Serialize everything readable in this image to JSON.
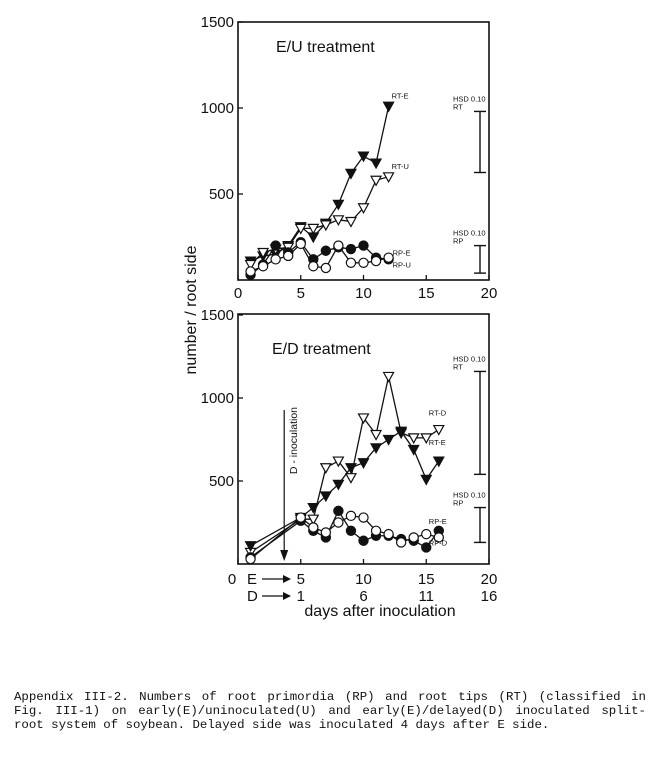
{
  "chart_data": [
    {
      "type": "line",
      "title": "E/U treatment",
      "xlabel": "",
      "ylabel": "number / root side",
      "xlim": [
        0,
        20
      ],
      "ylim": [
        0,
        1500
      ],
      "xticks": [
        "0",
        "5",
        "10",
        "15",
        "20"
      ],
      "yticks": [
        "500",
        "1000",
        "1500"
      ],
      "series": [
        {
          "name": "RT-E",
          "marker": "triangle-down-filled",
          "x": [
            1,
            2,
            3,
            4,
            5,
            6,
            7,
            8,
            9,
            10,
            11,
            12
          ],
          "y": [
            110,
            140,
            150,
            200,
            310,
            250,
            330,
            440,
            620,
            720,
            680,
            1010
          ]
        },
        {
          "name": "RT-U",
          "marker": "triangle-down-open",
          "x": [
            1,
            2,
            3,
            4,
            5,
            6,
            7,
            8,
            9,
            10,
            11,
            12
          ],
          "y": [
            90,
            160,
            180,
            190,
            300,
            300,
            320,
            350,
            340,
            420,
            580,
            600
          ]
        },
        {
          "name": "RP-E",
          "marker": "circle-filled",
          "x": [
            1,
            2,
            3,
            4,
            5,
            6,
            7,
            8,
            9,
            10,
            11,
            12
          ],
          "y": [
            30,
            90,
            200,
            160,
            220,
            120,
            170,
            190,
            180,
            200,
            130,
            120
          ]
        },
        {
          "name": "RP-U",
          "marker": "circle-open",
          "x": [
            1,
            2,
            3,
            4,
            5,
            6,
            7,
            8,
            9,
            10,
            11,
            12
          ],
          "y": [
            50,
            80,
            120,
            140,
            210,
            80,
            70,
            200,
            100,
            100,
            110,
            130
          ]
        }
      ],
      "hsd": [
        {
          "label": [
            "HSD 0.10",
            "RT"
          ],
          "low": 625,
          "high": 980
        },
        {
          "label": [
            "HSD 0.10",
            "RP"
          ],
          "low": 40,
          "high": 200
        }
      ]
    },
    {
      "type": "line",
      "title": "E/D treatment",
      "xlabel": "days after inoculation",
      "ylabel": "number / root side",
      "xlim": [
        0,
        20
      ],
      "ylim": [
        0,
        1500
      ],
      "xticks": [
        "0",
        "5",
        "10",
        "15",
        "20"
      ],
      "yticks": [
        "500",
        "1000",
        "1500"
      ],
      "x_row_labels": [
        {
          "label": "E",
          "ticks": [
            "5",
            "10",
            "15",
            "20"
          ]
        },
        {
          "label": "D",
          "ticks": [
            "1",
            "6",
            "11",
            "16"
          ]
        }
      ],
      "annotation": {
        "text": "D - inoculation",
        "x": 4
      },
      "series": [
        {
          "name": "RT-D",
          "marker": "triangle-down-open",
          "x": [
            1,
            5,
            6,
            7,
            8,
            9,
            10,
            11,
            12,
            13,
            14,
            15,
            16
          ],
          "y": [
            70,
            270,
            270,
            580,
            620,
            520,
            880,
            780,
            1130,
            790,
            760,
            760,
            810
          ]
        },
        {
          "name": "RT-E",
          "marker": "triangle-down-filled",
          "x": [
            1,
            5,
            6,
            7,
            8,
            9,
            10,
            11,
            12,
            13,
            14,
            15,
            16
          ],
          "y": [
            110,
            280,
            340,
            410,
            480,
            580,
            610,
            700,
            750,
            800,
            690,
            510,
            620
          ]
        },
        {
          "name": "RP-E",
          "marker": "circle-filled",
          "x": [
            1,
            5,
            6,
            7,
            8,
            9,
            10,
            11,
            12,
            13,
            14,
            15,
            16
          ],
          "y": [
            40,
            260,
            200,
            160,
            320,
            200,
            140,
            170,
            170,
            150,
            140,
            100,
            200
          ]
        },
        {
          "name": "RP-D",
          "marker": "circle-open",
          "x": [
            1,
            5,
            6,
            7,
            8,
            9,
            10,
            11,
            12,
            13,
            14,
            15,
            16
          ],
          "y": [
            30,
            280,
            220,
            190,
            250,
            290,
            280,
            200,
            180,
            130,
            160,
            180,
            160
          ]
        }
      ],
      "hsd": [
        {
          "label": [
            "HSD 0.10",
            "RT"
          ],
          "low": 540,
          "high": 1160
        },
        {
          "label": [
            "HSD 0.10",
            "RP"
          ],
          "low": 130,
          "high": 340
        }
      ]
    }
  ],
  "caption": "Appendix III-2. Numbers of root primordia (RP) and root tips (RT) (classified in Fig. III-1) on early(E)/uninoculated(U) and early(E)/delayed(D) inoculated split-root system of soybean. Delayed side was inoculated 4 days after E side.",
  "colors": {
    "ink": "#111111",
    "background": "#ffffff"
  }
}
